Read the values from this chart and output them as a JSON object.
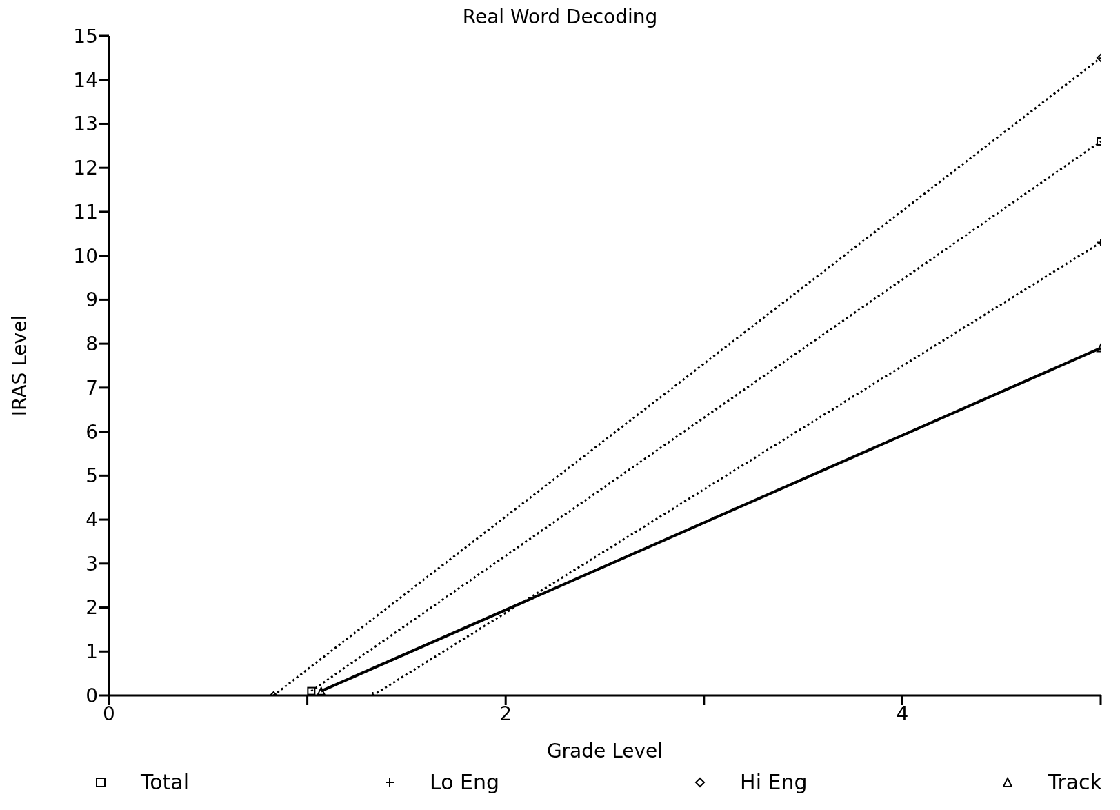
{
  "chart_data": {
    "type": "line",
    "title": "Real Word Decoding",
    "xlabel": "Grade Level",
    "ylabel": "IRAS Level",
    "xlim": [
      0,
      5
    ],
    "xticks": [
      0,
      {
        "value": 1,
        "label": null
      },
      2,
      {
        "value": 3,
        "label": null
      },
      4,
      {
        "value": 5,
        "label": null
      }
    ],
    "ylim": [
      0,
      15
    ],
    "yticks": [
      0,
      1,
      2,
      3,
      4,
      5,
      6,
      7,
      8,
      9,
      10,
      11,
      12,
      13,
      14,
      15
    ],
    "legend": "bottom",
    "series": [
      {
        "name": "Total",
        "color": "#000000",
        "marker": "square",
        "line_style": "dotted",
        "x": [
          1.02,
          5
        ],
        "values": [
          0.1,
          12.6
        ]
      },
      {
        "name": "Lo Eng",
        "color": "#000000",
        "marker": "cross",
        "line_style": "dotted",
        "x": [
          1.33,
          5
        ],
        "values": [
          0,
          10.3
        ]
      },
      {
        "name": "Hi Eng",
        "color": "#000000",
        "marker": "diamond",
        "line_style": "dotted",
        "x": [
          0.83,
          5
        ],
        "values": [
          0,
          14.5
        ]
      },
      {
        "name": "Track",
        "color": "#000000",
        "marker": "triangle",
        "line_style": "solid",
        "x": [
          1.07,
          5
        ],
        "values": [
          0.1,
          7.9
        ]
      }
    ]
  }
}
